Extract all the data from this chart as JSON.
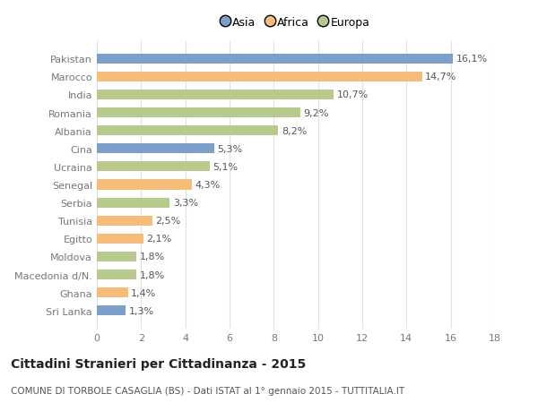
{
  "categories": [
    "Pakistan",
    "Marocco",
    "India",
    "Romania",
    "Albania",
    "Cina",
    "Ucraina",
    "Senegal",
    "Serbia",
    "Tunisia",
    "Egitto",
    "Moldova",
    "Macedonia d/N.",
    "Ghana",
    "Sri Lanka"
  ],
  "values": [
    16.1,
    14.7,
    10.7,
    9.2,
    8.2,
    5.3,
    5.1,
    4.3,
    3.3,
    2.5,
    2.1,
    1.8,
    1.8,
    1.4,
    1.3
  ],
  "labels": [
    "16,1%",
    "14,7%",
    "10,7%",
    "9,2%",
    "8,2%",
    "5,3%",
    "5,1%",
    "4,3%",
    "3,3%",
    "2,5%",
    "2,1%",
    "1,8%",
    "1,8%",
    "1,4%",
    "1,3%"
  ],
  "colors": [
    "#7b9fc9",
    "#f5bc7a",
    "#b8c98e",
    "#b8c98e",
    "#b8c98e",
    "#7b9fc9",
    "#b8c98e",
    "#f5bc7a",
    "#b8c98e",
    "#f5bc7a",
    "#f5bc7a",
    "#b8c98e",
    "#b8c98e",
    "#f5bc7a",
    "#7b9fc9"
  ],
  "legend_labels": [
    "Asia",
    "Africa",
    "Europa"
  ],
  "legend_colors": [
    "#7b9fc9",
    "#f5bc7a",
    "#b8c98e"
  ],
  "title": "Cittadini Stranieri per Cittadinanza - 2015",
  "subtitle": "COMUNE DI TORBOLE CASAGLIA (BS) - Dati ISTAT al 1° gennaio 2015 - TUTTITALIA.IT",
  "xlim": [
    0,
    18
  ],
  "xticks": [
    0,
    2,
    4,
    6,
    8,
    10,
    12,
    14,
    16,
    18
  ],
  "background_color": "#ffffff",
  "grid_color": "#e0e0e0",
  "bar_height": 0.55,
  "label_fontsize": 8,
  "tick_fontsize": 8,
  "ytick_fontsize": 8,
  "title_fontsize": 10,
  "subtitle_fontsize": 7.5
}
